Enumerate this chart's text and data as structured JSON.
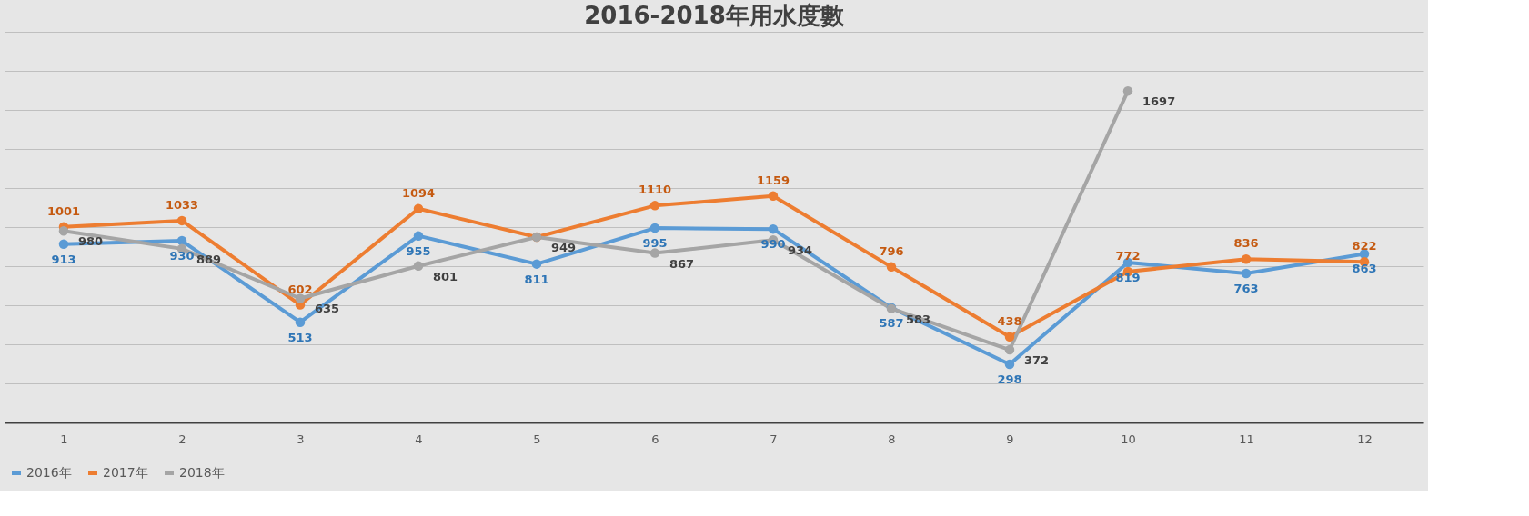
{
  "chart_data": {
    "type": "line",
    "title": "2016-2018年用水度數",
    "categories": [
      "1",
      "2",
      "3",
      "4",
      "5",
      "6",
      "7",
      "8",
      "9",
      "10",
      "11",
      "12"
    ],
    "series": [
      {
        "name": "2016年",
        "color": "#5b9bd5",
        "values": [
          913,
          930,
          513,
          955,
          811,
          995,
          990,
          587,
          298,
          819,
          763,
          863
        ],
        "value_labels": [
          "913",
          "930",
          "513",
          "955",
          "811",
          "995",
          "990",
          "587",
          "298",
          "819",
          "763",
          "863"
        ]
      },
      {
        "name": "2017年",
        "color": "#ed7d31",
        "values": [
          1001,
          1033,
          602,
          1094,
          949,
          1110,
          1159,
          796,
          438,
          772,
          836,
          822
        ],
        "value_labels": [
          "1001",
          "1033",
          "602",
          "1094",
          null,
          "1110",
          "1159",
          "796",
          "438",
          "772",
          "836",
          "822"
        ]
      },
      {
        "name": "2018年",
        "color": "#a5a5a5",
        "values": [
          980,
          889,
          635,
          801,
          949,
          867,
          934,
          583,
          372,
          1697,
          null,
          null
        ],
        "value_labels": [
          "980",
          "889",
          "635",
          "801",
          "949",
          "867",
          "934",
          "583",
          "372",
          "1697",
          null,
          null
        ]
      }
    ],
    "ylim": [
      0,
      2000
    ],
    "yticks": [
      {
        "value": 0,
        "label": null
      },
      {
        "value": 200,
        "label": null
      },
      {
        "value": 400,
        "label": null
      },
      {
        "value": 600,
        "label": null
      },
      {
        "value": 800,
        "label": null
      },
      {
        "value": 1000,
        "label": null
      },
      {
        "value": 1200,
        "label": null
      },
      {
        "value": 1400,
        "label": null
      },
      {
        "value": 1600,
        "label": null
      },
      {
        "value": 1800,
        "label": null
      },
      {
        "value": 2000,
        "label": null
      }
    ],
    "tick_labels": "x",
    "grid": "y",
    "legend": "bottom",
    "marker": "circle",
    "line_style": "solid"
  }
}
